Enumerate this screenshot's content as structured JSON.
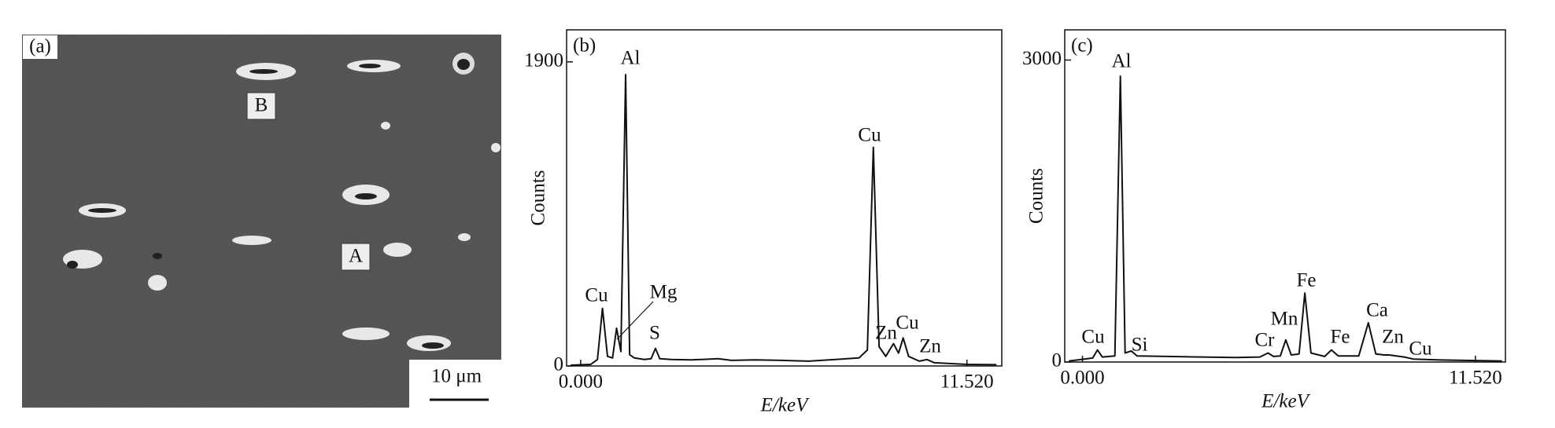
{
  "panel_a": {
    "label": "(a)",
    "markers": [
      "A",
      "B"
    ],
    "scale_bar": "10 μm"
  },
  "chart_data": [
    {
      "type": "line",
      "panel_label": "(b)",
      "xlabel": "E/keV",
      "ylabel": "Counts",
      "xlim": [
        -0.42,
        12.56
      ],
      "xticks": [
        {
          "value": 0,
          "label": "0.000"
        },
        {
          "value": 11.52,
          "label": "11.520"
        }
      ],
      "ylim": [
        0,
        2100
      ],
      "yticks": [
        0,
        1900
      ],
      "x": [
        -0.3,
        0.3,
        0.5,
        0.65,
        0.8,
        0.95,
        1.07,
        1.2,
        1.34,
        1.46,
        1.6,
        1.9,
        2.1,
        2.23,
        2.36,
        2.7,
        3.3,
        4.1,
        4.5,
        5.2,
        6,
        6.8,
        7.6,
        8.3,
        8.55,
        8.73,
        8.9,
        9.1,
        9.33,
        9.48,
        9.62,
        9.78,
        10.1,
        10.33,
        10.55,
        11,
        11.52,
        12.4
      ],
      "values": [
        5,
        10,
        40,
        360,
        60,
        50,
        236,
        90,
        1820,
        70,
        50,
        40,
        45,
        110,
        45,
        40,
        38,
        45,
        35,
        38,
        35,
        30,
        40,
        50,
        100,
        1366,
        120,
        60,
        140,
        80,
        175,
        60,
        30,
        40,
        20,
        15,
        10,
        8
      ],
      "color": "#111111",
      "peak_labels": [
        "Cu",
        "Mg",
        "Al",
        "S",
        "Cu",
        "Zn",
        "Cu",
        "Zn"
      ]
    },
    {
      "type": "line",
      "panel_label": "(c)",
      "xlabel": "E/keV",
      "ylabel": "Counts",
      "xlim": [
        -0.52,
        12.4
      ],
      "xticks": [
        {
          "value": 0,
          "label": "0.000"
        },
        {
          "value": 11.52,
          "label": "11.520"
        }
      ],
      "ylim": [
        0,
        3300
      ],
      "yticks": [
        0,
        3000
      ],
      "x": [
        -0.4,
        0.3,
        0.44,
        0.58,
        0.95,
        1.11,
        1.25,
        1.43,
        1.6,
        2.5,
        3.5,
        4.5,
        5.2,
        5.44,
        5.6,
        5.8,
        5.96,
        6.12,
        6.35,
        6.52,
        6.7,
        7.1,
        7.3,
        7.5,
        8.1,
        8.38,
        8.6,
        8.85,
        8.99,
        9.2,
        9.43,
        9.7,
        10.5,
        11.52,
        12.3
      ],
      "values": [
        10,
        40,
        120,
        50,
        60,
        2840,
        90,
        110,
        60,
        55,
        50,
        45,
        50,
        90,
        55,
        60,
        220,
        70,
        80,
        685,
        90,
        55,
        120,
        60,
        60,
        390,
        80,
        70,
        70,
        60,
        50,
        30,
        20,
        15,
        10
      ],
      "color": "#111111",
      "peak_labels": [
        "Cu",
        "Al",
        "Si",
        "Cr",
        "Mn",
        "Fe",
        "Fe",
        "Ca",
        "Zn",
        "Cu"
      ]
    }
  ]
}
